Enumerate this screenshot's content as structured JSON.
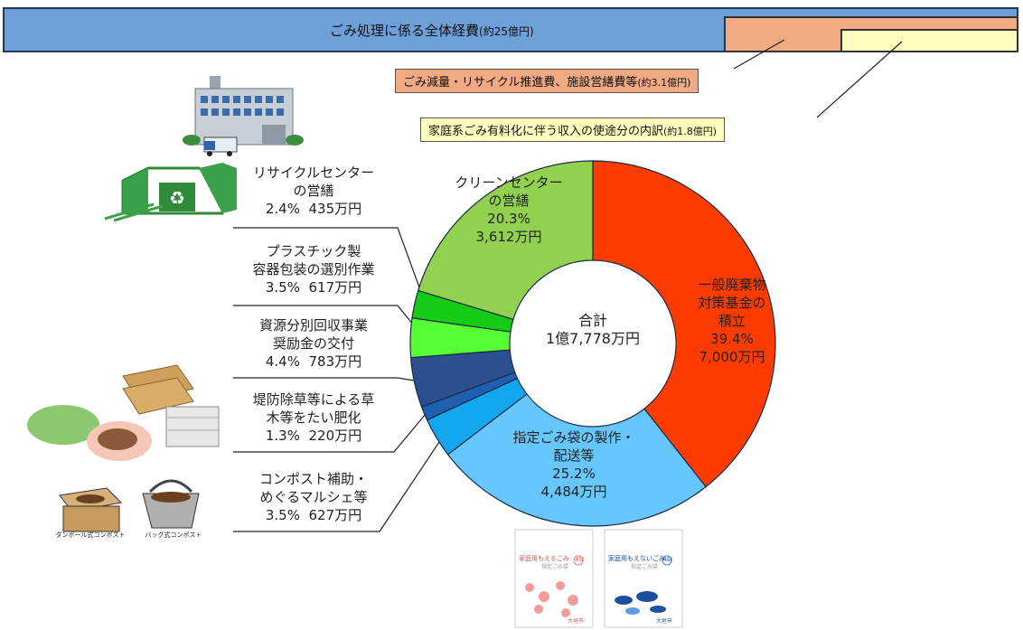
{
  "header": {
    "title": "ごみ処理に係る全体経費",
    "title_note": "(約25億円)",
    "callout_orange": "ごみ減量・リサイクル推進費、施設営繕費等",
    "callout_orange_note": "(約3.1億円)",
    "callout_yellow": "家庭系ごみ有料化に伴う収入の使途分の内訳",
    "callout_yellow_note": "(約1.8億円)"
  },
  "colors": {
    "top_bar": "#6f9fd8",
    "orange": "#f1aa82",
    "yellow": "#ffffc0"
  },
  "chart_data": {
    "type": "pie",
    "donut": true,
    "center_label_line1": "合計",
    "center_label_line2": "1億7,778万円",
    "slices": [
      {
        "key": "fund",
        "name_lines": [
          "一般廃棄物",
          "対策基金の",
          "積立"
        ],
        "percent_label": "39.4%",
        "amount_label": "7,000万円",
        "value": 7000,
        "color": "#ff3b00"
      },
      {
        "key": "bags",
        "name_lines": [
          "指定ごみ袋の製作・",
          "配送等"
        ],
        "percent_label": "25.2%",
        "amount_label": "4,484万円",
        "value": 4484,
        "color": "#66c7ff"
      },
      {
        "key": "compost",
        "name_lines": [
          "コンポスト補助・",
          "めぐるマルシェ等"
        ],
        "percent_label": "3.5%",
        "amount_label": "627万円",
        "value": 627,
        "color": "#12a6ec"
      },
      {
        "key": "weeds",
        "name_lines": [
          "堤防除草等による草",
          "木等をたい肥化"
        ],
        "percent_label": "1.3%",
        "amount_label": "220万円",
        "value": 220,
        "color": "#1f5fb0"
      },
      {
        "key": "incentive",
        "name_lines": [
          "資源分別回収事業",
          "奨励金の交付"
        ],
        "percent_label": "4.4%",
        "amount_label": "783万円",
        "value": 783,
        "color": "#2c4f8f"
      },
      {
        "key": "plastic",
        "name_lines": [
          "プラスチック製",
          "容器包装の選別作業"
        ],
        "percent_label": "3.5%",
        "amount_label": "617万円",
        "value": 617,
        "color": "#55ff33"
      },
      {
        "key": "recycle",
        "name_lines": [
          "リサイクルセンター",
          "の営繕"
        ],
        "percent_label": "2.4%",
        "amount_label": "435万円",
        "value": 435,
        "color": "#14cc14"
      },
      {
        "key": "clean",
        "name_lines": [
          "クリーンセンター",
          "の営繕"
        ],
        "percent_label": "20.3%",
        "amount_label": "3,612万円",
        "value": 3612,
        "color": "#92d050"
      }
    ]
  },
  "illustrations": {
    "bag_orange_title": "家庭用もえるごみ",
    "bag_blue_title": "家庭用もえないごみ",
    "bag_size": "45ℓ",
    "bag_city": "大垣市",
    "bag_sub": "指定ごみ袋",
    "compost_box_caption": "ダンボール式コンポスト",
    "compost_bag_caption": "バッグ式コンポスト"
  }
}
